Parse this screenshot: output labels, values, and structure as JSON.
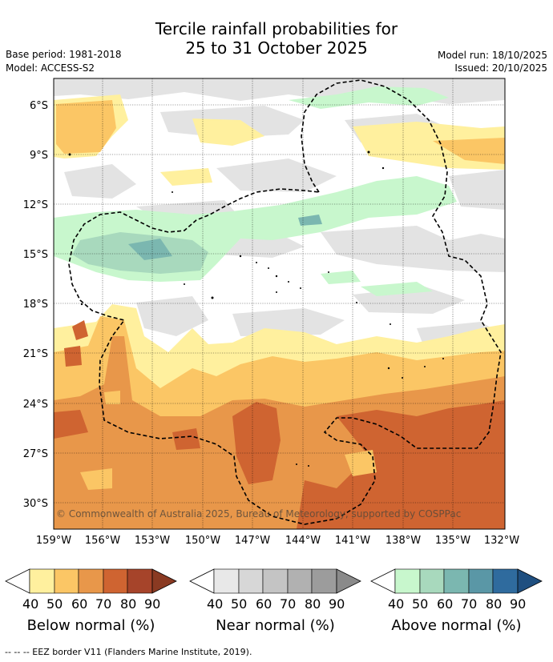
{
  "header": {
    "title_line1": "Tercile rainfall probabilities for",
    "title_line2": "25 to 31 October 2025",
    "base_period": "Base period: 1981-2018",
    "model": "Model: ACCESS-S2",
    "model_run": "Model run: 18/10/2025",
    "issued": "Issued: 20/10/2025"
  },
  "map": {
    "lat_labels": [
      "6°S",
      "9°S",
      "12°S",
      "15°S",
      "18°S",
      "21°S",
      "24°S",
      "27°S",
      "30°S"
    ],
    "lon_labels": [
      "159°W",
      "156°W",
      "153°W",
      "150°W",
      "147°W",
      "144°W",
      "141°W",
      "138°W",
      "135°W",
      "132°W"
    ],
    "copyright": "© Commonwealth of Australia 2025, Bureau of Meteorology, supported by COSPPac"
  },
  "legend": {
    "below": {
      "title": "Below normal (%)",
      "ticks": [
        "40",
        "50",
        "60",
        "70",
        "80",
        "90"
      ],
      "colors": [
        "#fff09e",
        "#fbc665",
        "#e8974a",
        "#cf6431",
        "#a6442a"
      ]
    },
    "near": {
      "title": "Near normal (%)",
      "ticks": [
        "40",
        "50",
        "60",
        "70",
        "80",
        "90"
      ],
      "colors": [
        "#e8e8e8",
        "#d7d7d7",
        "#c4c4c4",
        "#b1b1b1",
        "#9c9c9c"
      ]
    },
    "above": {
      "title": "Above normal (%)",
      "ticks": [
        "40",
        "50",
        "60",
        "70",
        "80",
        "90"
      ],
      "colors": [
        "#c8f7cd",
        "#a8d9bd",
        "#7bb7b0",
        "#5a97a6",
        "#2f6b9e"
      ]
    }
  },
  "footer": "--  --  -- EEZ border V11 (Flanders Marine Institute, 2019)."
}
